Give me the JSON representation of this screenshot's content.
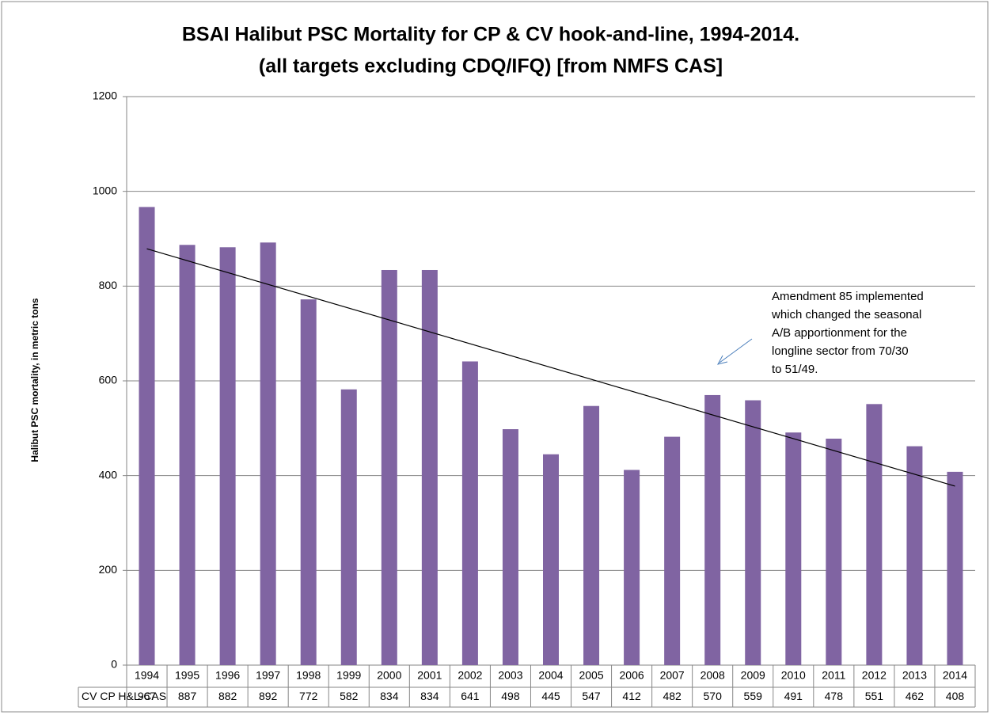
{
  "chart_data": {
    "type": "bar",
    "title": [
      "BSAI Halibut PSC Mortality for CP & CV hook-and-line, 1994-2014.",
      "(all targets  excluding CDQ/IFQ) [from NMFS CAS]"
    ],
    "y_label": "Halibut PSC mortality, in metric tons",
    "categories": [
      "1994",
      "1995",
      "1996",
      "1997",
      "1998",
      "1999",
      "2000",
      "2001",
      "2002",
      "2003",
      "2004",
      "2005",
      "2006",
      "2007",
      "2008",
      "2009",
      "2010",
      "2011",
      "2012",
      "2013",
      "2014"
    ],
    "series": [
      {
        "name": "CV CP H&L-CAS",
        "color": "#8064a2",
        "values": [
          967,
          887,
          882,
          892,
          772,
          582,
          834,
          834,
          641,
          498,
          445,
          547,
          412,
          482,
          570,
          559,
          491,
          478,
          551,
          462,
          408
        ]
      }
    ],
    "ylim": [
      0,
      1200
    ],
    "yticks": [
      0,
      200,
      400,
      600,
      800,
      1000,
      1200
    ],
    "grid": true,
    "trendline": "linear",
    "annotation": [
      "Amendment 85 implemented",
      "which changed the seasonal",
      "A/B apportionment for the",
      "longline sector from 70/30",
      "to 51/49."
    ]
  }
}
